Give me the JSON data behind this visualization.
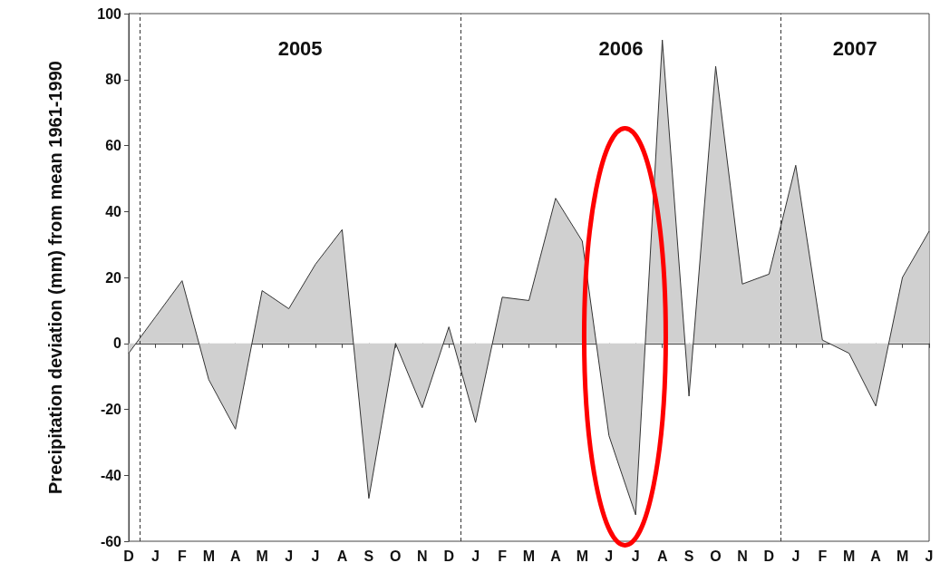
{
  "chart_data": {
    "type": "area",
    "ylabel": "Precipitation deviation (mm) from mean 1961-1990",
    "categories": [
      "D",
      "J",
      "F",
      "M",
      "A",
      "M",
      "J",
      "J",
      "A",
      "S",
      "O",
      "N",
      "D",
      "J",
      "F",
      "M",
      "A",
      "M",
      "J",
      "J",
      "A",
      "S",
      "O",
      "N",
      "D",
      "J",
      "F",
      "M",
      "A",
      "M",
      "J"
    ],
    "values": [
      -3,
      8,
      19,
      -11,
      -26,
      16,
      10.5,
      24,
      34.5,
      -47,
      0,
      -19.5,
      5,
      -24,
      14,
      13,
      44,
      31,
      -28,
      -52,
      92,
      -16,
      84,
      18,
      21,
      54,
      1,
      -3,
      -19,
      20,
      34
    ],
    "color": "#d0d0d0",
    "ylim": [
      -60,
      100
    ],
    "yticks": [
      -60,
      -40,
      -20,
      0,
      20,
      40,
      60,
      80,
      100
    ],
    "annotations": [
      "2005",
      "2006",
      "2007"
    ],
    "grid": false,
    "marker": "none"
  }
}
